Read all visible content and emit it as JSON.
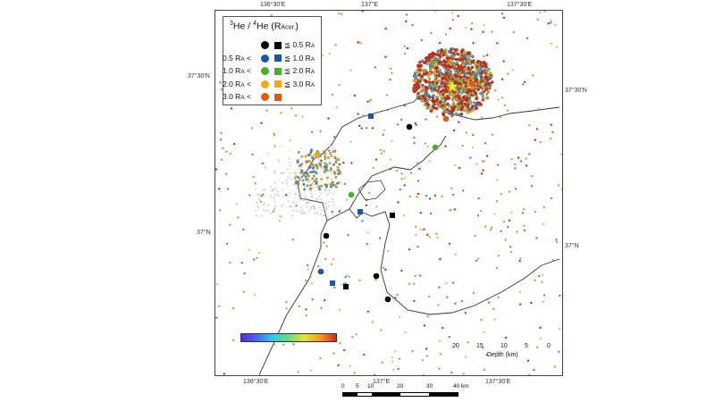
{
  "map": {
    "legend": {
      "title_pre": "3",
      "title_mid": "He / ",
      "title_sup2": "4",
      "title_post": "He (R",
      "title_sub": "Acor.",
      "title_end": ")",
      "rows": [
        {
          "lo": "",
          "hi": "≦ 0.5 R",
          "dot_color": "#000000",
          "sq_color": "#000000"
        },
        {
          "lo": "0.5 R",
          "hi": "≦ 1.0 R",
          "dot_color": "#1f55a8",
          "sq_color": "#1f55a8"
        },
        {
          "lo": "1.0 R",
          "hi": "≦ 2.0 R",
          "dot_color": "#46b02a",
          "sq_color": "#46b02a"
        },
        {
          "lo": "2.0 R",
          "hi": "≦ 3.0 R",
          "dot_color": "#f0aa18",
          "sq_color": "#f0aa18"
        },
        {
          "lo": "3.0 R",
          "hi": "",
          "dot_color": "#e05a14",
          "sq_color": "#e05a14"
        }
      ],
      "ra_sub": "A",
      "less_than": "<"
    },
    "ticks_top": [
      "136°30'E",
      "137°E",
      "137°30'E"
    ],
    "ticks_bottom": [
      "136°30'E",
      "137°E",
      "137°30'E"
    ],
    "ticks_left": [
      "37°30'N",
      "37°N"
    ],
    "ticks_right": [
      "37°30'N",
      "37°N"
    ],
    "colorbar": {
      "ticks": [
        "20",
        "15",
        "10",
        "5",
        "0"
      ],
      "label": "Depth (km)"
    },
    "scale": {
      "labels": [
        "0",
        "5",
        "10",
        "20",
        "30",
        "40 km"
      ]
    },
    "colors": {
      "coast": "#333333",
      "shallow": "#d62a1a",
      "mid": "#e8b030",
      "deep": "#3f8fd0",
      "star": "#ffee22"
    }
  }
}
